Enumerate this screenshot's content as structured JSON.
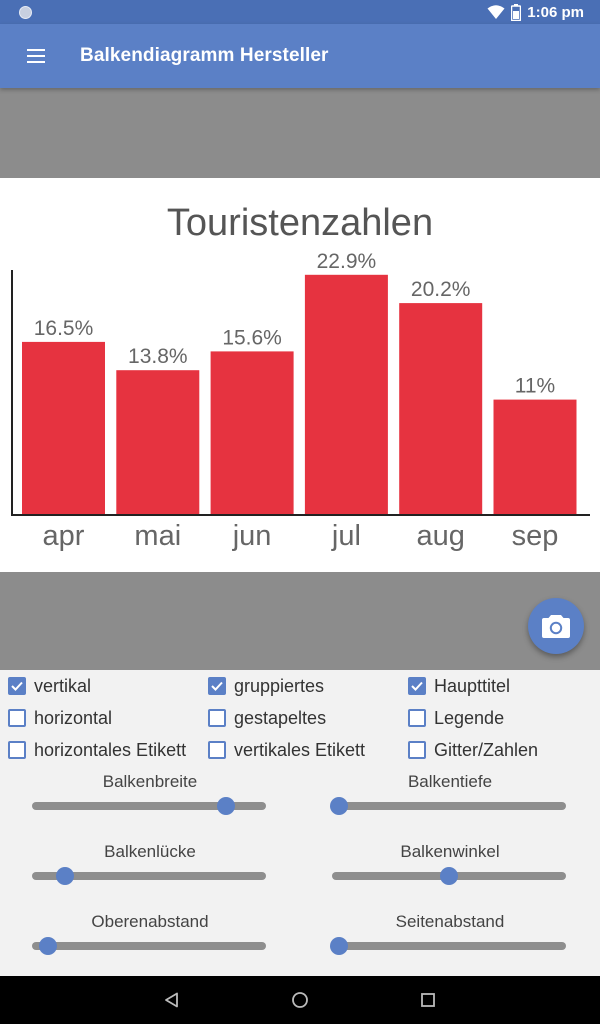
{
  "status_bar": {
    "time": "1:06 pm",
    "icons": [
      "notification-dot-icon",
      "wifi-icon",
      "battery-icon"
    ]
  },
  "app_bar": {
    "title": "Balkendiagramm Hersteller",
    "menu_icon": "menu-icon"
  },
  "colors": {
    "primary": "#5b80c6",
    "bar": "#e63340",
    "status": "#4a6fb5",
    "grey_band": "#8c8c8c"
  },
  "chart_data": {
    "type": "bar",
    "title": "Touristenzahlen",
    "categories": [
      "apr",
      "mai",
      "jun",
      "jul",
      "aug",
      "sep"
    ],
    "values": [
      16.5,
      13.8,
      15.6,
      22.9,
      20.2,
      11
    ],
    "value_labels": [
      "16.5%",
      "13.8%",
      "15.6%",
      "22.9%",
      "20.2%",
      "11%"
    ],
    "ylim": [
      0,
      24.5
    ],
    "grid": false,
    "legend": false
  },
  "fab": {
    "icon": "camera-icon"
  },
  "checkboxes": [
    {
      "label": "vertikal",
      "checked": true
    },
    {
      "label": "gruppiertes",
      "checked": true
    },
    {
      "label": "Haupttitel",
      "checked": true
    },
    {
      "label": "horizontal",
      "checked": false
    },
    {
      "label": "gestapeltes",
      "checked": false
    },
    {
      "label": "Legende",
      "checked": false
    },
    {
      "label": "horizontales Etikett",
      "checked": false
    },
    {
      "label": "vertikales Etikett",
      "checked": false
    },
    {
      "label": "Gitter/Zahlen",
      "checked": false
    }
  ],
  "sliders": [
    {
      "label": "Balkenbreite",
      "value": 0.83
    },
    {
      "label": "Balkentiefe",
      "value": 0.03
    },
    {
      "label": "Balkenlücke",
      "value": 0.14
    },
    {
      "label": "Balkenwinkel",
      "value": 0.5
    },
    {
      "label": "Oberenabstand",
      "value": 0.07
    },
    {
      "label": "Seitenabstand",
      "value": 0.03
    }
  ],
  "nav_bar": {
    "icons": [
      "back-icon",
      "home-icon",
      "recents-icon"
    ]
  }
}
